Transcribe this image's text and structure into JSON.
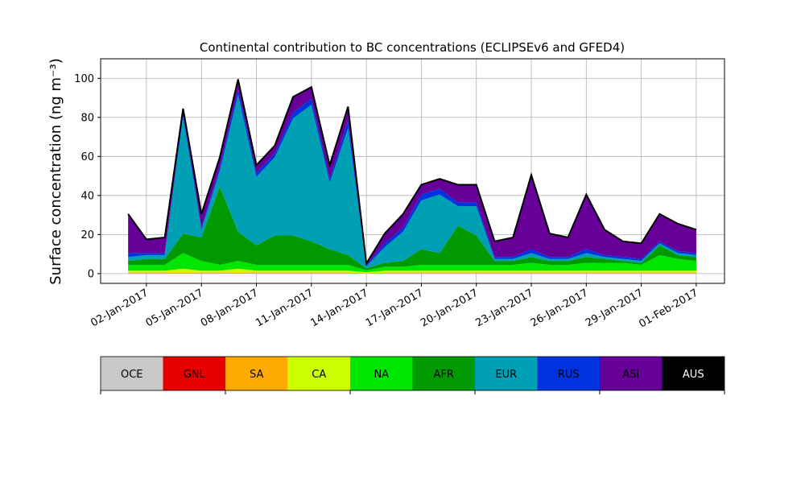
{
  "chart_data": {
    "type": "area",
    "stacked": true,
    "title": "Continental contribution to BC concentrations (ECLIPSEv6 and GFED4)",
    "y_label": "Surface concentration (ng m⁻³)",
    "x": [
      "2017-01-01",
      "2017-01-02",
      "2017-01-03",
      "2017-01-04",
      "2017-01-05",
      "2017-01-06",
      "2017-01-07",
      "2017-01-08",
      "2017-01-09",
      "2017-01-10",
      "2017-01-11",
      "2017-01-12",
      "2017-01-13",
      "2017-01-14",
      "2017-01-15",
      "2017-01-16",
      "2017-01-17",
      "2017-01-18",
      "2017-01-19",
      "2017-01-20",
      "2017-01-21",
      "2017-01-22",
      "2017-01-23",
      "2017-01-24",
      "2017-01-25",
      "2017-01-26",
      "2017-01-27",
      "2017-01-28",
      "2017-01-29",
      "2017-01-30",
      "2017-01-31",
      "2017-02-01"
    ],
    "xlim": [
      "2016-12-30T12:00",
      "2017-02-02T13:00"
    ],
    "xticks": [
      {
        "value": "2017-01-02",
        "label": "02-Jan-2017"
      },
      {
        "value": "2017-01-05",
        "label": "05-Jan-2017"
      },
      {
        "value": "2017-01-08",
        "label": "08-Jan-2017"
      },
      {
        "value": "2017-01-11",
        "label": "11-Jan-2017"
      },
      {
        "value": "2017-01-14",
        "label": "14-Jan-2017"
      },
      {
        "value": "2017-01-17",
        "label": "17-Jan-2017"
      },
      {
        "value": "2017-01-20",
        "label": "20-Jan-2017"
      },
      {
        "value": "2017-01-23",
        "label": "23-Jan-2017"
      },
      {
        "value": "2017-01-26",
        "label": "26-Jan-2017"
      },
      {
        "value": "2017-01-29",
        "label": "29-Jan-2017"
      },
      {
        "value": "2017-02-01",
        "label": "01-Feb-2017"
      }
    ],
    "ylim": [
      -5,
      110
    ],
    "yticks": [
      0,
      20,
      40,
      60,
      80,
      100
    ],
    "grid": true,
    "series": [
      {
        "name": "OCE",
        "color": "#c8c8c8",
        "values": [
          0,
          0,
          0,
          0,
          0,
          0,
          0,
          0,
          0,
          0,
          0,
          0,
          0,
          0,
          0,
          0,
          0,
          0,
          0,
          0,
          0,
          0,
          0,
          0,
          0,
          0,
          0,
          0,
          0,
          0,
          0,
          0
        ]
      },
      {
        "name": "GNL",
        "color": "#e60000",
        "values": [
          0,
          0,
          0,
          0,
          0,
          0,
          0,
          0,
          0,
          0,
          0,
          0,
          0,
          0,
          0,
          0,
          0,
          0,
          0,
          0,
          0,
          0,
          0,
          0,
          0,
          0,
          0,
          0,
          0,
          0,
          0,
          0
        ]
      },
      {
        "name": "SA",
        "color": "#ffaa00",
        "values": [
          0.5,
          0.5,
          0.5,
          0.5,
          0.5,
          0.5,
          0.5,
          0.5,
          0.5,
          0.5,
          0.5,
          0.5,
          0.5,
          0.2,
          0.5,
          0.5,
          0.5,
          0.5,
          0.5,
          0.5,
          0.5,
          0.5,
          0.5,
          0.5,
          0.5,
          0.5,
          0.5,
          0.5,
          0.5,
          0.5,
          0.5,
          0.5
        ]
      },
      {
        "name": "CA",
        "color": "#ccff00",
        "values": [
          1,
          1,
          1,
          2,
          1,
          1,
          2,
          1,
          1,
          1,
          1,
          1,
          1,
          0.5,
          1,
          1,
          1,
          1,
          1,
          1,
          1,
          1,
          1,
          1,
          1,
          1,
          1,
          1,
          1,
          1,
          1,
          1
        ]
      },
      {
        "name": "NA",
        "color": "#00e600",
        "values": [
          3,
          3,
          3,
          8,
          5,
          3,
          4,
          3,
          3,
          3,
          3,
          3,
          3,
          1,
          2,
          2,
          3,
          3,
          3,
          3,
          3,
          3,
          4,
          3,
          3,
          4,
          4,
          4,
          3,
          8,
          6,
          5
        ]
      },
      {
        "name": "AFR",
        "color": "#009900",
        "values": [
          2,
          3,
          3,
          10,
          12,
          40,
          15,
          10,
          15,
          15,
          12,
          8,
          5,
          1,
          2,
          3,
          8,
          6,
          20,
          15,
          2,
          2,
          3,
          2,
          2,
          3,
          2,
          1,
          1,
          5,
          2,
          2
        ]
      },
      {
        "name": "EUR",
        "color": "#00a0b4",
        "values": [
          2,
          2,
          2,
          60,
          4,
          8,
          70,
          35,
          40,
          60,
          70,
          34,
          65,
          1,
          8,
          15,
          25,
          30,
          10,
          15,
          1,
          1,
          2,
          1,
          1,
          2,
          1,
          1,
          1,
          1,
          1,
          1
        ]
      },
      {
        "name": "RUS",
        "color": "#0033dd",
        "values": [
          2,
          1,
          1,
          3,
          1,
          2,
          3,
          2,
          2,
          3,
          3,
          2,
          4,
          0.5,
          2,
          2,
          3,
          3,
          2,
          2,
          1,
          1,
          2,
          1,
          1,
          2,
          1,
          1,
          1,
          1,
          1,
          1
        ]
      },
      {
        "name": "ASI",
        "color": "#660099",
        "values": [
          20,
          7,
          8,
          1,
          7,
          5,
          5,
          4,
          4,
          8,
          6,
          7,
          7,
          1,
          5,
          7,
          5,
          5,
          9,
          9,
          8,
          10,
          38,
          12,
          10,
          28,
          13,
          8,
          8,
          14,
          14,
          12
        ]
      },
      {
        "name": "AUS",
        "color": "#000000",
        "values": [
          0,
          0,
          0,
          0,
          0,
          0,
          0,
          0,
          0,
          0,
          0,
          0,
          0,
          0,
          0,
          0,
          0,
          0,
          0,
          0,
          0,
          0,
          0,
          0,
          0,
          0,
          0,
          0,
          0,
          0,
          0,
          0
        ]
      }
    ]
  }
}
